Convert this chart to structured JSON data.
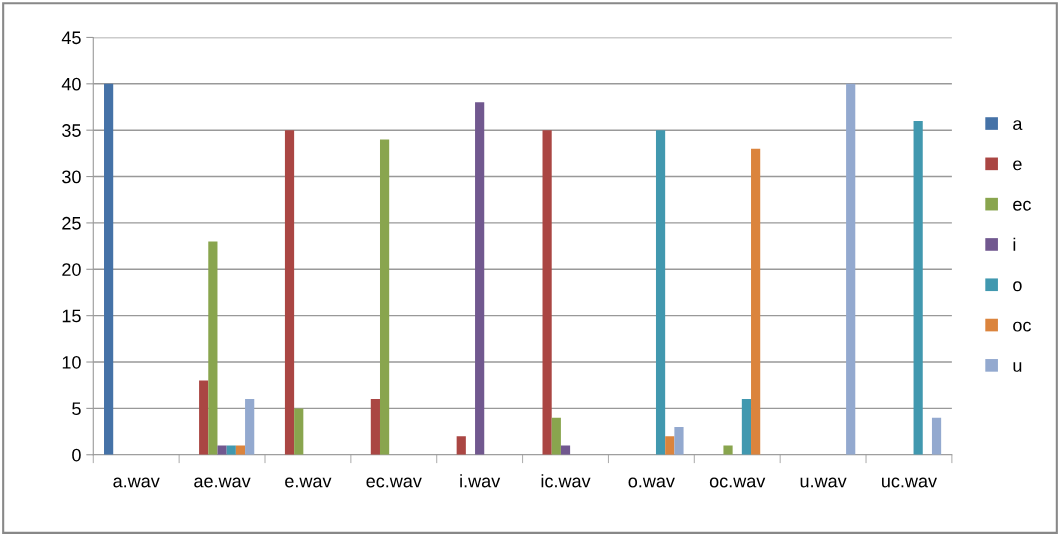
{
  "chart_data": {
    "type": "bar",
    "categories": [
      "a.wav",
      "ae.wav",
      "e.wav",
      "ec.wav",
      "i.wav",
      "ic.wav",
      "o.wav",
      "oc.wav",
      "u.wav",
      "uc.wav"
    ],
    "series": [
      {
        "name": "a",
        "color": "#4572a7",
        "values": [
          40,
          null,
          null,
          null,
          null,
          null,
          null,
          null,
          null,
          null
        ]
      },
      {
        "name": "e",
        "color": "#aa4643",
        "values": [
          null,
          8,
          35,
          6,
          2,
          35,
          null,
          null,
          null,
          null
        ]
      },
      {
        "name": "ec",
        "color": "#89a54e",
        "values": [
          null,
          23,
          5,
          34,
          null,
          4,
          null,
          1,
          null,
          null
        ]
      },
      {
        "name": "i",
        "color": "#71588f",
        "values": [
          null,
          1,
          null,
          null,
          38,
          1,
          null,
          null,
          null,
          null
        ]
      },
      {
        "name": "o",
        "color": "#4198af",
        "values": [
          null,
          1,
          null,
          null,
          null,
          null,
          35,
          6,
          null,
          36
        ]
      },
      {
        "name": "oc",
        "color": "#db843d",
        "values": [
          null,
          1,
          null,
          null,
          null,
          null,
          2,
          33,
          null,
          null
        ]
      },
      {
        "name": "u",
        "color": "#93a9cf",
        "values": [
          null,
          6,
          null,
          null,
          null,
          null,
          3,
          null,
          40,
          4
        ]
      }
    ],
    "ylim": [
      0,
      45
    ],
    "yticks": [
      0,
      5,
      10,
      15,
      20,
      25,
      30,
      35,
      40,
      45
    ],
    "grid": "y",
    "legend": "right"
  }
}
